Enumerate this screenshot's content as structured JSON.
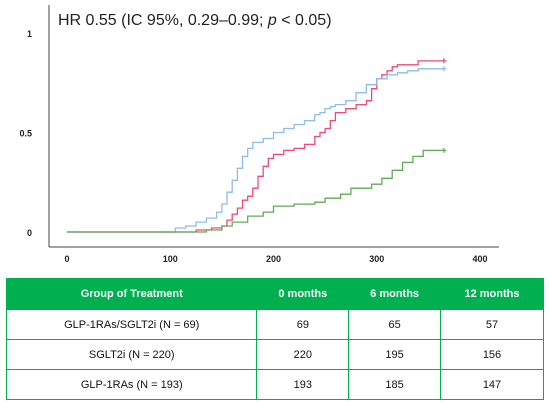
{
  "chart_data": {
    "type": "line",
    "annotation": "HR 0.55 (IC 95%, 0.29–0.99; p < 0.05)",
    "annotation_prefix": "HR 0.55 (IC 95%, 0.29–0.99; ",
    "annotation_p": "p",
    "annotation_suffix": " < 0.05)",
    "xlim": [
      -15,
      415
    ],
    "ylim": [
      0,
      1
    ],
    "x_ticks": [
      "0",
      "100",
      "200",
      "300",
      "400"
    ],
    "y_ticks": [
      "0",
      "0.5",
      "1"
    ],
    "grid": false,
    "series": [
      {
        "color": "#ee4a74",
        "points": [
          [
            0,
            0
          ],
          [
            120,
            0
          ],
          [
            125,
            0.01
          ],
          [
            140,
            0.02
          ],
          [
            150,
            0.03
          ],
          [
            155,
            0.06
          ],
          [
            160,
            0.09
          ],
          [
            165,
            0.12
          ],
          [
            170,
            0.16
          ],
          [
            175,
            0.18
          ],
          [
            180,
            0.22
          ],
          [
            185,
            0.28
          ],
          [
            190,
            0.33
          ],
          [
            195,
            0.37
          ],
          [
            200,
            0.39
          ],
          [
            210,
            0.41
          ],
          [
            220,
            0.42
          ],
          [
            230,
            0.44
          ],
          [
            240,
            0.48
          ],
          [
            245,
            0.5
          ],
          [
            250,
            0.52
          ],
          [
            255,
            0.56
          ],
          [
            260,
            0.6
          ],
          [
            270,
            0.62
          ],
          [
            280,
            0.64
          ],
          [
            290,
            0.66
          ],
          [
            295,
            0.72
          ],
          [
            300,
            0.77
          ],
          [
            305,
            0.79
          ],
          [
            310,
            0.81
          ],
          [
            315,
            0.83
          ],
          [
            320,
            0.84
          ],
          [
            330,
            0.84
          ],
          [
            340,
            0.86
          ],
          [
            365,
            0.86
          ]
        ]
      },
      {
        "color": "#8ebde8",
        "points": [
          [
            0,
            0
          ],
          [
            100,
            0
          ],
          [
            105,
            0.02
          ],
          [
            115,
            0.03
          ],
          [
            125,
            0.05
          ],
          [
            135,
            0.07
          ],
          [
            145,
            0.1
          ],
          [
            150,
            0.14
          ],
          [
            155,
            0.2
          ],
          [
            160,
            0.26
          ],
          [
            165,
            0.32
          ],
          [
            170,
            0.38
          ],
          [
            175,
            0.42
          ],
          [
            180,
            0.45
          ],
          [
            190,
            0.47
          ],
          [
            200,
            0.5
          ],
          [
            210,
            0.52
          ],
          [
            220,
            0.54
          ],
          [
            230,
            0.56
          ],
          [
            240,
            0.59
          ],
          [
            245,
            0.6
          ],
          [
            250,
            0.62
          ],
          [
            255,
            0.63
          ],
          [
            260,
            0.64
          ],
          [
            270,
            0.66
          ],
          [
            280,
            0.7
          ],
          [
            290,
            0.74
          ],
          [
            300,
            0.77
          ],
          [
            310,
            0.79
          ],
          [
            320,
            0.8
          ],
          [
            330,
            0.81
          ],
          [
            340,
            0.82
          ],
          [
            365,
            0.82
          ]
        ]
      },
      {
        "color": "#63aa58",
        "points": [
          [
            0,
            0
          ],
          [
            125,
            0
          ],
          [
            135,
            0.01
          ],
          [
            150,
            0.03
          ],
          [
            160,
            0.05
          ],
          [
            175,
            0.08
          ],
          [
            190,
            0.1
          ],
          [
            200,
            0.13
          ],
          [
            220,
            0.14
          ],
          [
            240,
            0.15
          ],
          [
            250,
            0.17
          ],
          [
            265,
            0.19
          ],
          [
            275,
            0.22
          ],
          [
            295,
            0.24
          ],
          [
            305,
            0.27
          ],
          [
            315,
            0.31
          ],
          [
            325,
            0.35
          ],
          [
            335,
            0.38
          ],
          [
            345,
            0.41
          ],
          [
            365,
            0.41
          ]
        ]
      }
    ]
  },
  "risk_table": {
    "headers": [
      "Group of Treatment",
      "0 months",
      "6 months",
      "12 months"
    ],
    "rows": [
      [
        "GLP-1RAs/SGLT2i (N = 69)",
        "69",
        "65",
        "57"
      ],
      [
        "SGLT2i (N = 220)",
        "220",
        "195",
        "156"
      ],
      [
        "GLP-1RAs (N = 193)",
        "193",
        "185",
        "147"
      ]
    ]
  }
}
